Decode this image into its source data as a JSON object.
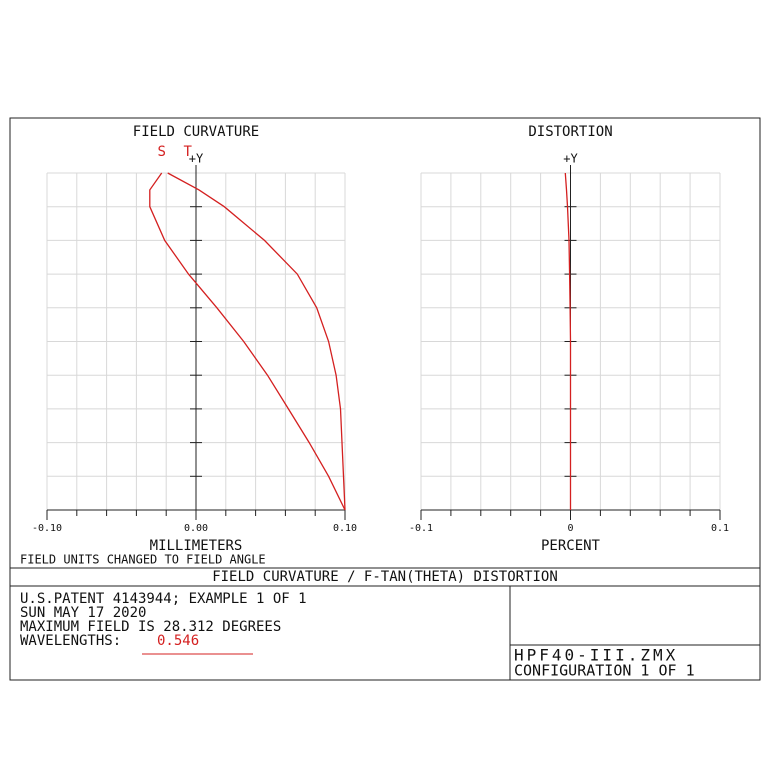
{
  "chart_data": [
    {
      "type": "line",
      "title": "FIELD CURVATURE",
      "y_axis_label": "+Y",
      "x_axis_label": "MILLIMETERS",
      "note": "FIELD UNITS CHANGED TO FIELD ANGLE",
      "xlim": [
        -0.1,
        0.1
      ],
      "xticks": [
        {
          "value": -0.1,
          "label": "-0.10"
        },
        {
          "value": 0,
          "label": "0.00"
        },
        {
          "value": 0.1,
          "label": "0.10"
        }
      ],
      "ylim": [
        0,
        1
      ],
      "grid": true,
      "y": [
        0,
        0.1,
        0.2,
        0.3,
        0.4,
        0.5,
        0.6,
        0.7,
        0.8,
        0.9,
        0.95,
        1.0
      ],
      "series": [
        {
          "name": "S",
          "color": "#d42020",
          "values": [
            0.1,
            0.089,
            0.076,
            0.062,
            0.048,
            0.032,
            0.014,
            -0.005,
            -0.021,
            -0.031,
            -0.031,
            -0.023
          ]
        },
        {
          "name": "T",
          "color": "#d42020",
          "values": [
            0.1,
            0.099,
            0.098,
            0.097,
            0.094,
            0.089,
            0.081,
            0.068,
            0.046,
            0.019,
            0.002,
            -0.019
          ]
        }
      ]
    },
    {
      "type": "line",
      "title": "DISTORTION",
      "y_axis_label": "+Y",
      "x_axis_label": "PERCENT",
      "xlim": [
        -0.1,
        0.1
      ],
      "xticks": [
        -0.1,
        0,
        0.1
      ],
      "ylim": [
        0,
        1
      ],
      "grid": true,
      "y": [
        0,
        0.1,
        0.2,
        0.3,
        0.4,
        0.5,
        0.6,
        0.7,
        0.8,
        0.9,
        0.95,
        1.0
      ],
      "series": [
        {
          "color": "#d42020",
          "values": [
            0,
            0,
            0,
            0,
            0,
            0,
            -0.0003,
            -0.0006,
            -0.001,
            -0.002,
            -0.0027,
            -0.0035
          ]
        }
      ]
    }
  ],
  "footer": {
    "title": "FIELD CURVATURE / F-TAN(THETA) DISTORTION",
    "lines": [
      "U.S.PATENT 4143944; EXAMPLE 1 OF 1",
      "SUN MAY 17 2020",
      "MAXIMUM FIELD IS 28.312 DEGREES"
    ],
    "wavelengths_label": "WAVELENGTHS:",
    "wavelengths": "0.546",
    "file": "HPF40-III.ZMX",
    "configuration": "CONFIGURATION 1 OF 1"
  }
}
